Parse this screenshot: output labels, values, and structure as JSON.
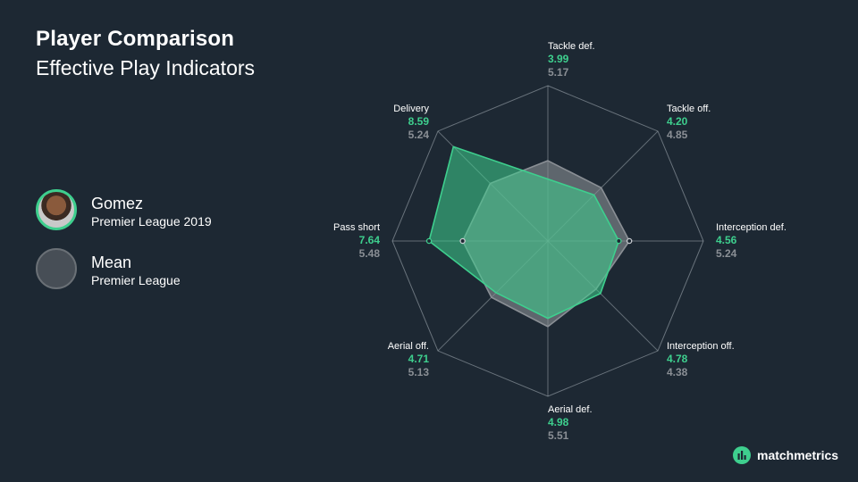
{
  "title": "Player Comparison",
  "subtitle": "Effective Play Indicators",
  "legend": {
    "player": {
      "name": "Gomez",
      "league": "Premier League 2019"
    },
    "mean": {
      "name": "Mean",
      "league": "Premier League"
    }
  },
  "brand": "matchmetrics",
  "colors": {
    "background": "#1d2833",
    "player": "#3ecf8e",
    "mean": "#8a8f95",
    "grid": "#a8b0b8"
  },
  "chart_data": {
    "type": "radar",
    "range": [
      0,
      10
    ],
    "categories": [
      "Tackle def.",
      "Tackle off.",
      "Interception def.",
      "Interception off.",
      "Aerial def.",
      "Aerial off.",
      "Pass short",
      "Delivery"
    ],
    "series": [
      {
        "name": "Gomez",
        "values": [
          3.99,
          4.2,
          4.56,
          4.78,
          4.98,
          4.71,
          7.64,
          8.59
        ]
      },
      {
        "name": "Mean",
        "values": [
          5.17,
          4.85,
          5.24,
          4.38,
          5.51,
          5.13,
          5.48,
          5.24
        ]
      }
    ],
    "value_labels": {
      "Gomez": [
        "3.99",
        "4.20",
        "4.56",
        "4.78",
        "4.98",
        "4.71",
        "7.64",
        "8.59"
      ],
      "Mean": [
        "5.17",
        "4.85",
        "5.24",
        "4.38",
        "5.51",
        "5.13",
        "5.48",
        "5.24"
      ]
    }
  }
}
